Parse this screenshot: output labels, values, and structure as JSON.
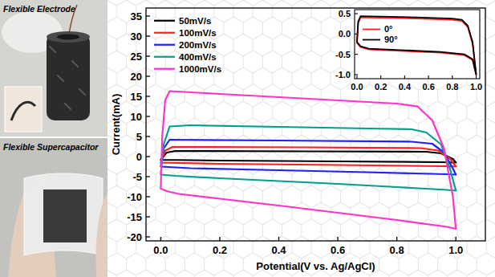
{
  "chart_data": [
    {
      "type": "line",
      "x_label": "Potential(V vs. Ag/AgCl)",
      "y_label": "Current(mA)",
      "xlim": [
        -0.05,
        1.1
      ],
      "ylim": [
        -21,
        37
      ],
      "xticks": [
        {
          "value": 0,
          "label": "0.0"
        },
        {
          "value": 0.2,
          "label": "0.2"
        },
        {
          "value": 0.4,
          "label": "0.4"
        },
        {
          "value": 0.6,
          "label": "0.6"
        },
        {
          "value": 0.8,
          "label": "0.8"
        },
        {
          "value": 1,
          "label": "1.0"
        }
      ],
      "yticks": [
        -20,
        -15,
        -10,
        -5,
        0,
        5,
        10,
        15,
        20,
        25,
        30,
        35
      ],
      "grid": false,
      "legend": "upper left",
      "series": [
        {
          "name": "50mV/s",
          "color": "#000000",
          "x": [
            0,
            0.02,
            0.05,
            0.5,
            0.9,
            0.95,
            0.99,
            1.0,
            0.95,
            0.6,
            0.2,
            0
          ],
          "values": [
            -0.8,
            1,
            1.4,
            1.3,
            1.2,
            0.8,
            -0.6,
            -1.5,
            -1.4,
            -1.2,
            -1,
            -0.8
          ]
        },
        {
          "name": "100mV/s",
          "color": "#ff1f1f",
          "x": [
            0,
            0.015,
            0.04,
            0.5,
            0.88,
            0.94,
            0.98,
            1.0,
            0.96,
            0.6,
            0.2,
            0
          ],
          "values": [
            -1.5,
            1.5,
            2.4,
            2.3,
            2.1,
            1.5,
            -0.5,
            -2.5,
            -2.4,
            -2.1,
            -1.8,
            -1.5
          ]
        },
        {
          "name": "200mV/s",
          "color": "#1f1fff",
          "x": [
            0,
            0.01,
            0.03,
            0.4,
            0.85,
            0.92,
            0.96,
            0.99,
            1.0,
            0.97,
            0.7,
            0.4,
            0.1,
            0
          ],
          "values": [
            -2.5,
            2,
            4.2,
            4,
            3.7,
            3.2,
            1,
            -3,
            -4.5,
            -4.4,
            -3.9,
            -3.4,
            -2.9,
            -2.5
          ]
        },
        {
          "name": "400mV/s",
          "color": "#00a08a",
          "x": [
            0,
            0.01,
            0.03,
            0.1,
            0.4,
            0.7,
            0.85,
            0.9,
            0.95,
            0.98,
            1.0,
            0.97,
            0.8,
            0.6,
            0.4,
            0.2,
            0.05,
            0
          ],
          "values": [
            -4.5,
            3,
            7.5,
            7.8,
            7.4,
            7,
            6.8,
            6,
            3,
            -3,
            -8.5,
            -8.3,
            -7.6,
            -6.8,
            -6.1,
            -5.4,
            -4.8,
            -4.5
          ]
        },
        {
          "name": "1000mV/s",
          "color": "#ff33cc",
          "x": [
            0,
            0.005,
            0.015,
            0.03,
            0.2,
            0.4,
            0.6,
            0.8,
            0.87,
            0.92,
            0.96,
            0.99,
            1.0,
            0.97,
            0.8,
            0.6,
            0.4,
            0.2,
            0.06,
            0.02,
            0
          ],
          "values": [
            -8,
            5,
            14,
            16.3,
            15.6,
            14.8,
            14,
            13.2,
            12.5,
            9,
            2,
            -10,
            -18,
            -17.5,
            -15.8,
            -14,
            -12.2,
            -10.5,
            -9.3,
            -8.6,
            -8
          ]
        }
      ]
    },
    {
      "type": "line",
      "xlim": [
        -0.02,
        1.03
      ],
      "ylim": [
        -1.1,
        0.6
      ],
      "xticks": [
        {
          "value": 0,
          "label": "0.0"
        },
        {
          "value": 0.2,
          "label": "0.2"
        },
        {
          "value": 0.4,
          "label": "0.4"
        },
        {
          "value": 0.6,
          "label": "0.6"
        },
        {
          "value": 0.8,
          "label": "0.8"
        },
        {
          "value": 1,
          "label": "1.0"
        }
      ],
      "yticks": [
        {
          "value": -1,
          "label": "-1.0"
        },
        -0.5,
        {
          "value": 0,
          "label": "0.0"
        },
        0.5
      ],
      "grid": false,
      "legend": "center left",
      "series": [
        {
          "name": "0°",
          "color": "#ff1f1f",
          "x": [
            0,
            0.01,
            0.03,
            0.2,
            0.5,
            0.8,
            0.88,
            0.93,
            0.97,
            1.0,
            0.97,
            0.9,
            0.7,
            0.4,
            0.1,
            0.03,
            0
          ],
          "values": [
            -0.22,
            0.27,
            0.41,
            0.4,
            0.38,
            0.35,
            0.32,
            0.17,
            -0.25,
            -1.0,
            -0.64,
            -0.52,
            -0.46,
            -0.42,
            -0.38,
            -0.32,
            -0.22
          ]
        },
        {
          "name": "90°",
          "color": "#000000",
          "x": [
            0,
            0.01,
            0.03,
            0.2,
            0.5,
            0.8,
            0.88,
            0.93,
            0.97,
            1.0,
            0.97,
            0.9,
            0.7,
            0.4,
            0.1,
            0.03,
            0
          ],
          "values": [
            -0.2,
            0.3,
            0.44,
            0.43,
            0.41,
            0.38,
            0.35,
            0.2,
            -0.2,
            -1.0,
            -0.62,
            -0.5,
            -0.44,
            -0.4,
            -0.36,
            -0.3,
            -0.2
          ]
        }
      ]
    }
  ],
  "photos": {
    "panels": [
      {
        "label": "Flexible Electrode"
      },
      {
        "label": "Flexible Supercapacitor"
      }
    ]
  }
}
